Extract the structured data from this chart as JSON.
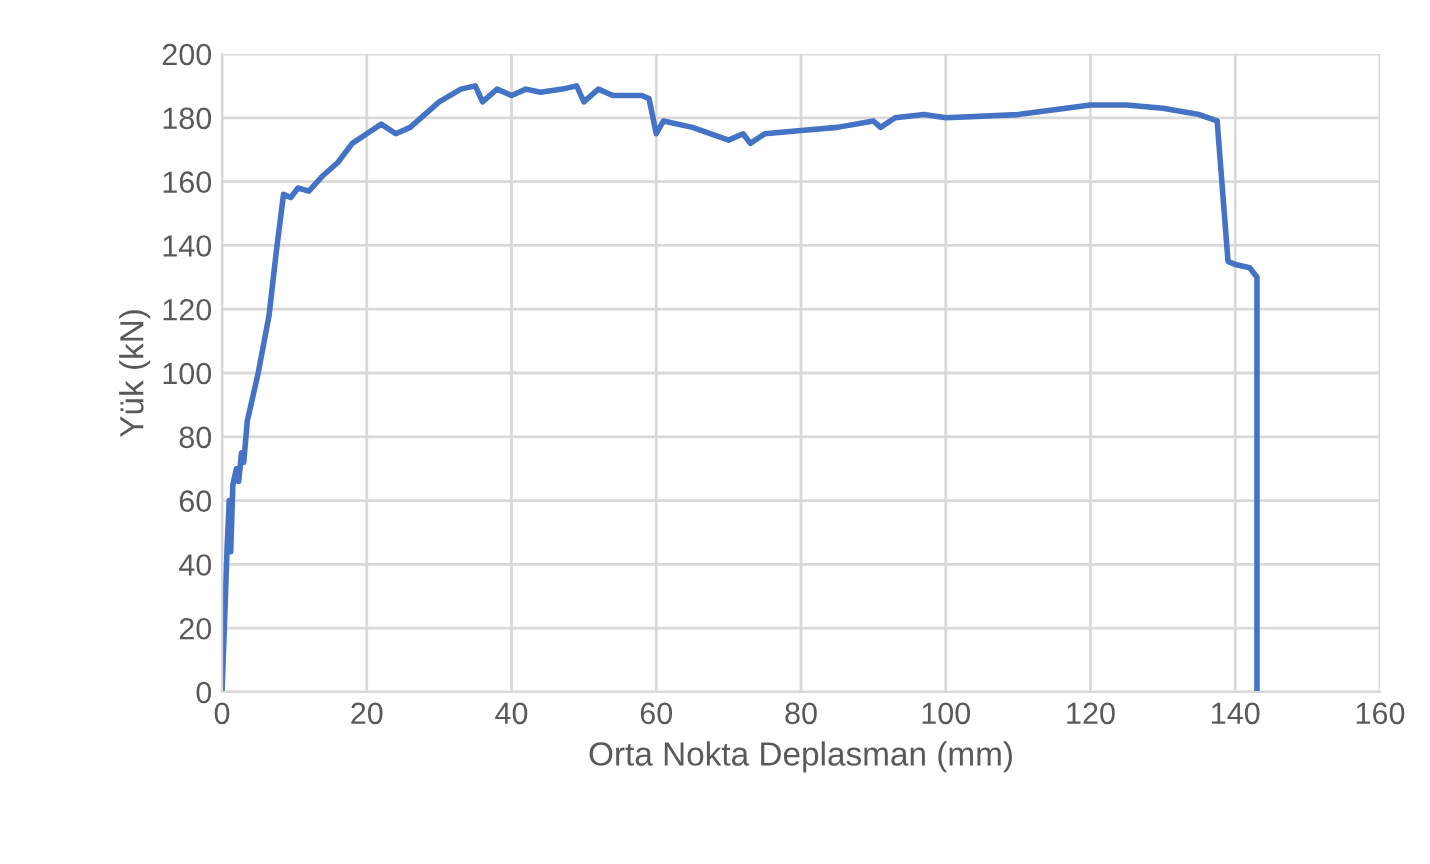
{
  "chart_data": {
    "type": "line",
    "xlabel": "Orta Nokta Deplasman (mm)",
    "ylabel": "Yük (kN)",
    "series": [
      {
        "color": "#4472c4",
        "x": [
          0,
          0.4,
          0.7,
          1.0,
          1.2,
          1.5,
          2,
          2.3,
          2.7,
          3,
          3.5,
          5,
          6.5,
          7.5,
          8.5,
          9.5,
          10.5,
          12,
          14,
          16,
          18,
          20,
          22,
          24,
          26,
          28,
          30,
          33,
          35,
          36,
          38,
          40,
          42,
          44,
          47,
          49,
          50,
          52,
          54,
          58,
          59,
          60,
          61,
          65,
          70,
          72,
          73,
          75,
          80,
          85,
          90,
          91,
          93,
          97,
          100,
          110,
          120,
          125,
          130,
          135,
          137.5,
          139,
          140,
          142,
          143,
          143
        ],
        "values": [
          0,
          25,
          45,
          60,
          44,
          65,
          70,
          66,
          75,
          72,
          85,
          100,
          118,
          138,
          156,
          155,
          158,
          157,
          162,
          166,
          172,
          175,
          178,
          175,
          177,
          181,
          185,
          189,
          190,
          185,
          189,
          187,
          189,
          188,
          189,
          190,
          185,
          189,
          187,
          187,
          186,
          175,
          179,
          177,
          173,
          175,
          172,
          175,
          176,
          177,
          179,
          177,
          180,
          181,
          180,
          181,
          184,
          184,
          183,
          181,
          179,
          135,
          134,
          133,
          130,
          0
        ]
      }
    ],
    "xlim": [
      0,
      160
    ],
    "xticks": [
      0,
      20,
      40,
      60,
      80,
      100,
      120,
      140,
      160
    ],
    "ylim": [
      0,
      200
    ],
    "yticks": [
      0,
      20,
      40,
      60,
      80,
      100,
      120,
      140,
      160,
      180,
      200
    ],
    "grid": true,
    "legend": false,
    "marker": "none",
    "line_style": "solid"
  }
}
